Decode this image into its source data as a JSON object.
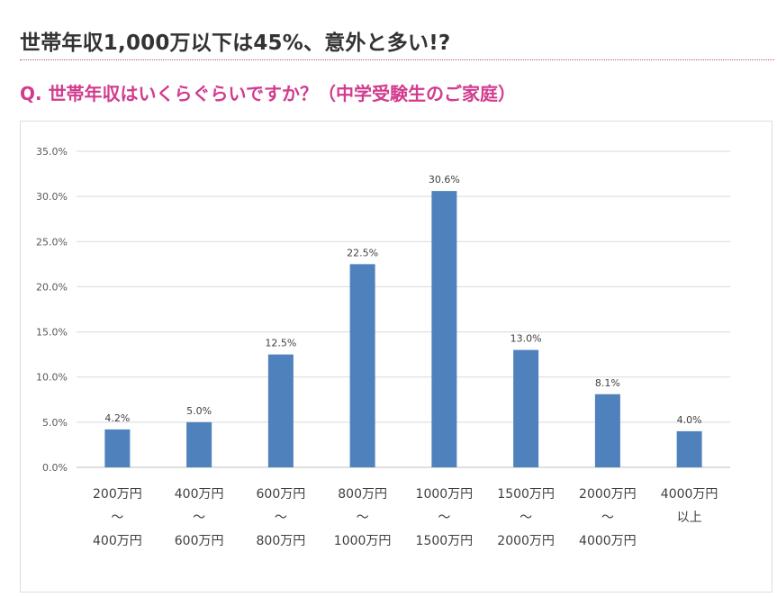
{
  "page": {
    "headline": "世帯年収1,000万以下は45%、意外と多い!?",
    "question": "Q. 世帯年収はいくらぐらいですか？（中学受験生のご家庭）"
  },
  "colors": {
    "accent": "#d23b8e",
    "bar": "#4f81bd",
    "grid": "#d9d9d9"
  },
  "chart_data": {
    "type": "bar",
    "categories": [
      [
        "200万円",
        "〜",
        "400万円"
      ],
      [
        "400万円",
        "〜",
        "600万円"
      ],
      [
        "600万円",
        "〜",
        "800万円"
      ],
      [
        "800万円",
        "〜",
        "1000万円"
      ],
      [
        "1000万円",
        "〜",
        "1500万円"
      ],
      [
        "1500万円",
        "〜",
        "2000万円"
      ],
      [
        "2000万円",
        "〜",
        "4000万円"
      ],
      [
        "4000万円",
        "以上"
      ]
    ],
    "values": [
      4.2,
      5.0,
      12.5,
      22.5,
      30.6,
      13.0,
      8.1,
      4.0
    ],
    "value_labels": [
      "4.2%",
      "5.0%",
      "12.5%",
      "22.5%",
      "30.6%",
      "13.0%",
      "8.1%",
      "4.0%"
    ],
    "ylim": [
      0,
      35
    ],
    "yticks": [
      0,
      5,
      10,
      15,
      20,
      25,
      30,
      35
    ],
    "ytick_labels": [
      "0.0%",
      "5.0%",
      "10.0%",
      "15.0%",
      "20.0%",
      "25.0%",
      "30.0%",
      "35.0%"
    ],
    "grid": true,
    "legend": "none",
    "title": "",
    "xlabel": "",
    "ylabel": ""
  }
}
